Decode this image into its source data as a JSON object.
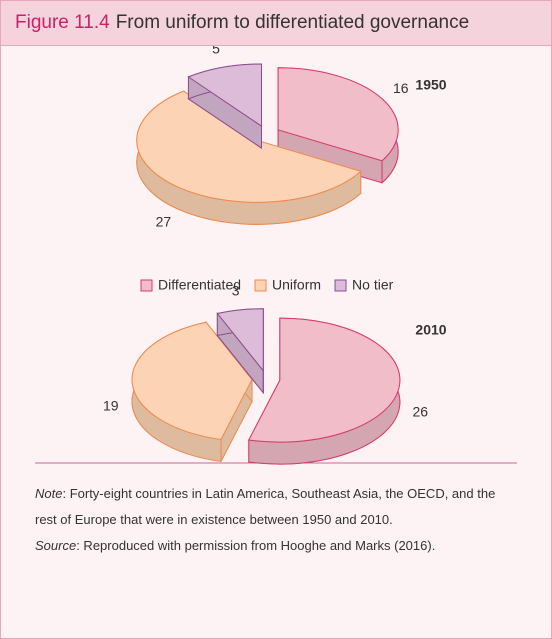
{
  "figure": {
    "label": "Figure 11.4",
    "title": "From uniform to differentiated governance"
  },
  "chart_data": [
    {
      "type": "pie",
      "title": "1950",
      "categories": [
        "Differentiated",
        "Uniform",
        "No tier"
      ],
      "values": [
        16,
        27,
        5
      ],
      "colors": [
        "#f1bdc9",
        "#fcd4b5",
        "#dcbcd9"
      ],
      "edge_colors": [
        "#d83a6e",
        "#f08a4b",
        "#8e4c8c"
      ]
    },
    {
      "type": "pie",
      "title": "2010",
      "categories": [
        "Differentiated",
        "Uniform",
        "No tier"
      ],
      "values": [
        26,
        19,
        3
      ],
      "colors": [
        "#f1bdc9",
        "#fcd4b5",
        "#dcbcd9"
      ],
      "edge_colors": [
        "#d83a6e",
        "#f08a4b",
        "#8e4c8c"
      ]
    }
  ],
  "notes": {
    "note_label": "Note",
    "note": ": Forty-eight countries in Latin America, Southeast Asia, the OECD, and the rest of Europe that were in existence between 1950 and 2010.",
    "source_label": "Source",
    "source": ": Reproduced with permission from Hooghe and Marks (2016)."
  }
}
